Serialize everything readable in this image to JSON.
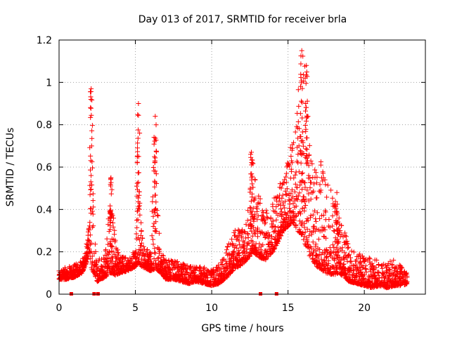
{
  "chart_data": {
    "type": "scatter",
    "title": "Day 013 of 2017, SRMTID for receiver brla",
    "xlabel": "GPS time / hours",
    "ylabel": "SRMTID / TECUs",
    "xlim": [
      0,
      24
    ],
    "ylim": [
      0,
      1.2
    ],
    "xticks": [
      0,
      5,
      10,
      15,
      20
    ],
    "yticks": [
      0,
      0.2,
      0.4,
      0.6,
      0.8,
      1,
      1.2
    ],
    "ytick_labels": [
      "0",
      "0.2",
      "0.4",
      "0.6",
      "0.8",
      "1",
      "1.2"
    ],
    "grid": true,
    "marker": "plus",
    "color": "#ff0000",
    "zero_markers_x": [
      0.8,
      2.3,
      2.55,
      13.2,
      14.25
    ],
    "envelope": {
      "description": "upper/lower bounds of dense point cloud (data units)",
      "x": [
        0.0,
        0.5,
        1.0,
        1.5,
        1.8,
        2.0,
        2.1,
        2.3,
        2.5,
        3.0,
        3.4,
        3.7,
        4.0,
        4.5,
        5.0,
        5.2,
        5.4,
        5.7,
        6.0,
        6.3,
        6.5,
        6.7,
        7.0,
        7.5,
        8.0,
        8.5,
        9.0,
        9.5,
        10.0,
        10.5,
        11.0,
        11.5,
        12.0,
        12.4,
        12.7,
        13.0,
        13.5,
        14.0,
        14.3,
        14.7,
        15.0,
        15.3,
        15.6,
        15.9,
        16.1,
        16.4,
        16.7,
        17.0,
        17.5,
        18.0,
        18.3,
        18.7,
        19.0,
        19.5,
        20.0,
        20.5,
        21.0,
        21.5,
        22.0,
        22.5,
        22.8
      ],
      "lower": [
        0.07,
        0.07,
        0.08,
        0.1,
        0.15,
        0.2,
        0.12,
        0.1,
        0.06,
        0.08,
        0.1,
        0.09,
        0.1,
        0.11,
        0.13,
        0.15,
        0.13,
        0.12,
        0.11,
        0.12,
        0.11,
        0.1,
        0.07,
        0.07,
        0.06,
        0.05,
        0.06,
        0.05,
        0.04,
        0.05,
        0.08,
        0.12,
        0.14,
        0.17,
        0.2,
        0.18,
        0.16,
        0.2,
        0.24,
        0.3,
        0.32,
        0.34,
        0.3,
        0.28,
        0.24,
        0.18,
        0.15,
        0.12,
        0.1,
        0.09,
        0.1,
        0.08,
        0.06,
        0.05,
        0.04,
        0.03,
        0.04,
        0.03,
        0.04,
        0.04,
        0.05
      ],
      "upper": [
        0.11,
        0.13,
        0.14,
        0.16,
        0.24,
        0.35,
        0.97,
        0.3,
        0.18,
        0.17,
        0.55,
        0.25,
        0.18,
        0.17,
        0.22,
        0.9,
        0.3,
        0.22,
        0.2,
        0.84,
        0.33,
        0.2,
        0.17,
        0.16,
        0.15,
        0.14,
        0.13,
        0.13,
        0.12,
        0.14,
        0.22,
        0.3,
        0.33,
        0.48,
        0.67,
        0.48,
        0.4,
        0.45,
        0.52,
        0.55,
        0.66,
        0.72,
        0.9,
        1.15,
        1.08,
        0.75,
        0.62,
        0.66,
        0.55,
        0.48,
        0.38,
        0.3,
        0.24,
        0.2,
        0.18,
        0.17,
        0.16,
        0.15,
        0.17,
        0.13,
        0.1
      ]
    },
    "peaks": [
      {
        "x": 2.1,
        "y": 0.97
      },
      {
        "x": 3.4,
        "y": 0.55
      },
      {
        "x": 5.2,
        "y": 0.9
      },
      {
        "x": 6.3,
        "y": 0.84
      },
      {
        "x": 12.6,
        "y": 0.67
      },
      {
        "x": 15.9,
        "y": 1.15
      },
      {
        "x": 16.2,
        "y": 1.08
      },
      {
        "x": 18.2,
        "y": 0.48
      }
    ]
  }
}
